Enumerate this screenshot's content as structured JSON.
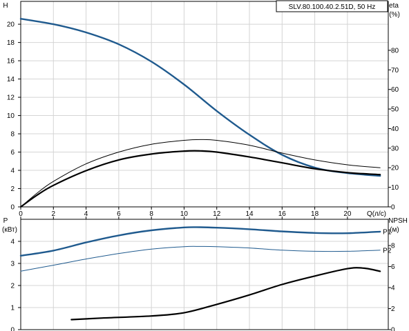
{
  "chart_data": [
    {
      "type": "line",
      "title": "SLV.80.100.40.2.51D, 50 Hz",
      "xlabel": "Q(л/с)",
      "ylabel_left": "H",
      "ylabel_right_1": "eta",
      "ylabel_right_2": "(%)",
      "xlim": [
        0,
        22.5
      ],
      "ylim_left": [
        0,
        22.5
      ],
      "ylim_right": [
        0,
        105
      ],
      "x_ticks": [
        0,
        2,
        4,
        6,
        8,
        10,
        12,
        14,
        16,
        18,
        20
      ],
      "y_ticks_left": [
        0,
        2,
        4,
        6,
        8,
        10,
        12,
        14,
        16,
        18,
        20
      ],
      "y_ticks_right": [
        0,
        10,
        20,
        30,
        40,
        50,
        60,
        70,
        80
      ],
      "grid": true,
      "series": [
        {
          "color": "#1f5a8e",
          "axis": "left",
          "x": [
            0,
            2,
            4,
            6,
            8,
            10,
            12,
            14,
            16,
            18,
            20,
            22
          ],
          "y": [
            20.6,
            20.0,
            19.1,
            17.8,
            15.9,
            13.4,
            10.5,
            7.9,
            5.7,
            4.3,
            3.7,
            3.4
          ]
        },
        {
          "color": "#000000",
          "axis": "right",
          "x": [
            0,
            1,
            2,
            4,
            6,
            8,
            10,
            11,
            12,
            14,
            16,
            18,
            20,
            22
          ],
          "y": [
            0,
            6,
            11,
            18.5,
            24,
            27,
            28.5,
            28.6,
            28,
            25.5,
            22.5,
            19.5,
            17.5,
            16.5
          ]
        },
        {
          "color": "#000000",
          "axis": "right",
          "x": [
            0,
            1,
            2,
            4,
            6,
            8,
            10,
            11,
            12,
            14,
            16,
            18,
            20,
            22
          ],
          "y": [
            0,
            7,
            13,
            22,
            28,
            32,
            34,
            34.4,
            34,
            31.5,
            27.5,
            24,
            21.5,
            20
          ]
        }
      ]
    },
    {
      "type": "line",
      "ylabel_left_1": "P",
      "ylabel_left_2": "(кВт)",
      "ylabel_right_1": "NPSH",
      "ylabel_right_2": "(м)",
      "xlim": [
        0,
        22.5
      ],
      "ylim_left": [
        0,
        5
      ],
      "ylim_right": [
        0,
        10.5
      ],
      "y_ticks_left": [
        0,
        1,
        2,
        3,
        4
      ],
      "y_ticks_right": [
        0,
        2,
        4,
        6,
        8
      ],
      "grid": true,
      "series": [
        {
          "name": "P1",
          "color": "#1f5a8e",
          "axis": "left",
          "x": [
            0,
            2,
            4,
            6,
            8,
            10,
            11,
            12,
            14,
            16,
            18,
            20,
            22
          ],
          "y": [
            3.35,
            3.58,
            3.95,
            4.27,
            4.5,
            4.63,
            4.64,
            4.62,
            4.55,
            4.45,
            4.38,
            4.37,
            4.44
          ]
        },
        {
          "name": "P2",
          "color": "#1f5a8e",
          "axis": "left",
          "x": [
            0,
            2,
            4,
            6,
            8,
            10,
            11,
            12,
            14,
            16,
            18,
            20,
            22
          ],
          "y": [
            2.65,
            2.92,
            3.2,
            3.45,
            3.65,
            3.76,
            3.77,
            3.76,
            3.7,
            3.6,
            3.55,
            3.55,
            3.6
          ]
        },
        {
          "color": "#000000",
          "axis": "right",
          "x": [
            3.1,
            5,
            8,
            10,
            12,
            14,
            16,
            18,
            20,
            21,
            22
          ],
          "y": [
            0.95,
            1.1,
            1.3,
            1.6,
            2.4,
            3.3,
            4.3,
            5.1,
            5.8,
            5.85,
            5.55
          ]
        }
      ]
    }
  ]
}
